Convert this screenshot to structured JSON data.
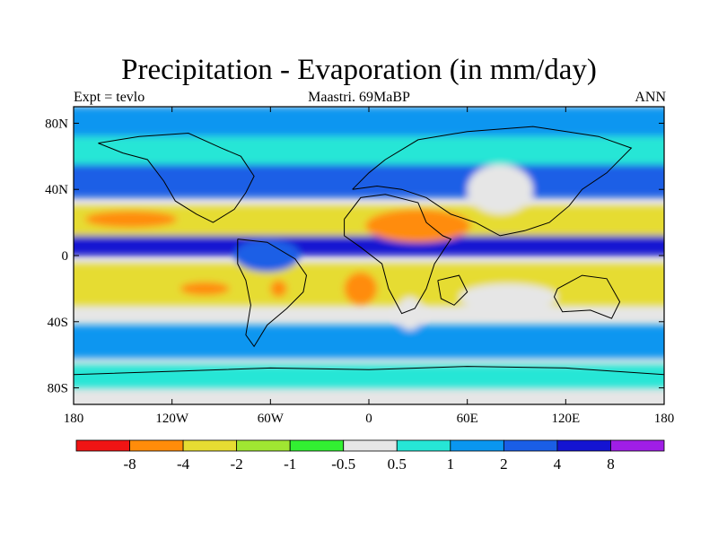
{
  "title": "Precipitation - Evaporation (in mm/day)",
  "subtitle": {
    "left": "Expt = tevlo",
    "center": "Maastri.  69MaBP",
    "right": "ANN"
  },
  "map": {
    "projection": "cylindrical-equidistant",
    "lon_range": [
      -180,
      180
    ],
    "lat_range": [
      -90,
      90
    ],
    "background_color": "#e6e6e6",
    "x_ticks": [
      {
        "value": -180,
        "label": "180"
      },
      {
        "value": -120,
        "label": "120W"
      },
      {
        "value": -60,
        "label": "60W"
      },
      {
        "value": 0,
        "label": "0"
      },
      {
        "value": 60,
        "label": "60E"
      },
      {
        "value": 120,
        "label": "120E"
      },
      {
        "value": 180,
        "label": "180"
      }
    ],
    "y_ticks": [
      {
        "value": 80,
        "label": "80N"
      },
      {
        "value": 40,
        "label": "40N"
      },
      {
        "value": 0,
        "label": "0"
      },
      {
        "value": -40,
        "label": "40S"
      },
      {
        "value": -80,
        "label": "80S"
      }
    ],
    "bands": [
      {
        "name": "arctic-blue",
        "lat": [
          90,
          72
        ],
        "color": "#0a96f0"
      },
      {
        "name": "north-cyan",
        "lat": [
          72,
          55
        ],
        "color": "#26e6d6"
      },
      {
        "name": "north-midlat-blue",
        "lat": [
          55,
          35
        ],
        "color": "#1a5ee6"
      },
      {
        "name": "north-yellow",
        "lat": [
          30,
          12
        ],
        "color": "#e6dc32"
      },
      {
        "name": "itcz",
        "lat": [
          12,
          0
        ],
        "color": "#1414d2"
      },
      {
        "name": "south-yellow",
        "lat": [
          -5,
          -30
        ],
        "color": "#e6dc32"
      },
      {
        "name": "south-midlat-blue",
        "lat": [
          -42,
          -62
        ],
        "color": "#0a96f0"
      },
      {
        "name": "antarctic-cyan",
        "lat": [
          -66,
          -80
        ],
        "color": "#26e6d6"
      }
    ],
    "blobs": [
      {
        "name": "north-pacific-orange",
        "lon": -145,
        "lat": 22,
        "rx": 28,
        "ry": 5,
        "color": "#ff8c0a"
      },
      {
        "name": "north-africa-orange",
        "lon": 30,
        "lat": 18,
        "rx": 32,
        "ry": 10,
        "color": "#ff8c0a"
      },
      {
        "name": "south-pacific-orange",
        "lon": -100,
        "lat": -20,
        "rx": 15,
        "ry": 4,
        "color": "#ff8c0a"
      },
      {
        "name": "south-america-orange",
        "lon": -55,
        "lat": -20,
        "rx": 5,
        "ry": 5,
        "color": "#ff8c0a"
      },
      {
        "name": "south-africa-orange",
        "lon": -5,
        "lat": -20,
        "rx": 10,
        "ry": 10,
        "color": "#ff8c0a"
      },
      {
        "name": "amazon-blue",
        "lon": -62,
        "lat": 0,
        "rx": 20,
        "ry": 10,
        "color": "#1a5ee6"
      },
      {
        "name": "asia-grey",
        "lon": 80,
        "lat": 40,
        "rx": 20,
        "ry": 15,
        "color": "#e6e6e6"
      },
      {
        "name": "south-africa-grey",
        "lon": 25,
        "lat": -35,
        "rx": 8,
        "ry": 10,
        "color": "#e6e6e6"
      },
      {
        "name": "indian-ocean-grey",
        "lon": 85,
        "lat": -25,
        "rx": 30,
        "ry": 8,
        "color": "#e6e6e6"
      }
    ],
    "coastlines": [
      {
        "name": "north-america-coast",
        "points": [
          [
            -165,
            68
          ],
          [
            -140,
            72
          ],
          [
            -110,
            74
          ],
          [
            -90,
            65
          ],
          [
            -78,
            60
          ],
          [
            -70,
            48
          ],
          [
            -75,
            38
          ],
          [
            -82,
            28
          ],
          [
            -95,
            20
          ],
          [
            -105,
            25
          ],
          [
            -118,
            33
          ],
          [
            -125,
            45
          ],
          [
            -135,
            58
          ],
          [
            -150,
            62
          ],
          [
            -165,
            68
          ]
        ]
      },
      {
        "name": "south-america-coast",
        "points": [
          [
            -80,
            10
          ],
          [
            -62,
            8
          ],
          [
            -45,
            -2
          ],
          [
            -38,
            -12
          ],
          [
            -40,
            -22
          ],
          [
            -50,
            -32
          ],
          [
            -62,
            -42
          ],
          [
            -70,
            -55
          ],
          [
            -75,
            -48
          ],
          [
            -72,
            -30
          ],
          [
            -75,
            -15
          ],
          [
            -80,
            -5
          ],
          [
            -80,
            10
          ]
        ]
      },
      {
        "name": "africa-coast",
        "points": [
          [
            -15,
            22
          ],
          [
            -5,
            35
          ],
          [
            10,
            37
          ],
          [
            30,
            32
          ],
          [
            35,
            20
          ],
          [
            45,
            12
          ],
          [
            50,
            10
          ],
          [
            40,
            -5
          ],
          [
            35,
            -20
          ],
          [
            28,
            -32
          ],
          [
            20,
            -35
          ],
          [
            12,
            -20
          ],
          [
            8,
            -5
          ],
          [
            -5,
            5
          ],
          [
            -15,
            12
          ],
          [
            -15,
            22
          ]
        ]
      },
      {
        "name": "eurasia-coast",
        "points": [
          [
            -10,
            40
          ],
          [
            0,
            50
          ],
          [
            10,
            58
          ],
          [
            30,
            70
          ],
          [
            60,
            75
          ],
          [
            100,
            78
          ],
          [
            140,
            72
          ],
          [
            160,
            65
          ],
          [
            145,
            50
          ],
          [
            130,
            40
          ],
          [
            122,
            30
          ],
          [
            110,
            20
          ],
          [
            95,
            15
          ],
          [
            80,
            12
          ],
          [
            65,
            20
          ],
          [
            50,
            25
          ],
          [
            35,
            35
          ],
          [
            20,
            40
          ],
          [
            5,
            42
          ],
          [
            -10,
            40
          ]
        ]
      },
      {
        "name": "australia-coast",
        "points": [
          [
            115,
            -20
          ],
          [
            130,
            -12
          ],
          [
            145,
            -14
          ],
          [
            153,
            -28
          ],
          [
            148,
            -38
          ],
          [
            135,
            -33
          ],
          [
            118,
            -34
          ],
          [
            113,
            -25
          ],
          [
            115,
            -20
          ]
        ]
      },
      {
        "name": "india-coast",
        "points": [
          [
            42,
            -15
          ],
          [
            55,
            -12
          ],
          [
            60,
            -22
          ],
          [
            52,
            -30
          ],
          [
            44,
            -26
          ],
          [
            42,
            -15
          ]
        ]
      },
      {
        "name": "antarctica-coast",
        "points": [
          [
            -180,
            -72
          ],
          [
            -120,
            -70
          ],
          [
            -60,
            -68
          ],
          [
            0,
            -69
          ],
          [
            60,
            -67
          ],
          [
            120,
            -68
          ],
          [
            180,
            -72
          ]
        ]
      }
    ]
  },
  "colorbar": {
    "colors": [
      "#f01414",
      "#ff8c0a",
      "#e6dc32",
      "#a0e632",
      "#32f032",
      "#e6e6e6",
      "#26e6d6",
      "#0a96f0",
      "#1a5ee6",
      "#1414d2",
      "#a01ee6"
    ],
    "labels": [
      "-8",
      "-4",
      "-2",
      "-1",
      "-0.5",
      "0.5",
      "1",
      "2",
      "4",
      "8"
    ]
  }
}
